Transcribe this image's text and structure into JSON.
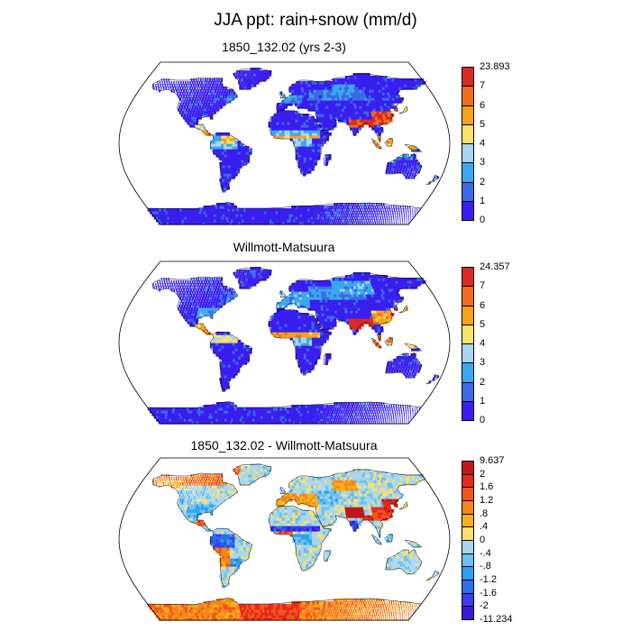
{
  "title": "JJA ppt: rain+snow (mm/d)",
  "panels": [
    {
      "id": "model",
      "title": "1850_132.02 (yrs 2-3)",
      "scale": "precip",
      "colorbar": {
        "labels": [
          "23.893",
          "7",
          "6",
          "5",
          "4",
          "3",
          "2",
          "1",
          "0"
        ],
        "colors": [
          "#d92a24",
          "#f06d1e",
          "#f7a21b",
          "#fbe369",
          "#a6d6f0",
          "#3aa8f0",
          "#3a6ae8",
          "#3a1ef0"
        ]
      }
    },
    {
      "id": "observed",
      "title": "Willmott-Matsuura",
      "scale": "precip",
      "colorbar": {
        "labels": [
          "24.357",
          "7",
          "6",
          "5",
          "4",
          "3",
          "2",
          "1",
          "0"
        ],
        "colors": [
          "#d92a24",
          "#f06d1e",
          "#f7a21b",
          "#fbe369",
          "#a6d6f0",
          "#3aa8f0",
          "#3a6ae8",
          "#3a1ef0"
        ]
      }
    },
    {
      "id": "difference",
      "title": "1850_132.02 - Willmott-Matsuura",
      "scale": "diff",
      "colorbar": {
        "labels": [
          "9.637",
          "2",
          "1.6",
          "1.2",
          ".8",
          ".4",
          "0",
          "-.4",
          "-.8",
          "-1.2",
          "-1.6",
          "-2",
          "-11.234"
        ],
        "colors": [
          "#c01818",
          "#e8281c",
          "#f2561e",
          "#f5871d",
          "#f7b01c",
          "#fbe06a",
          "#a8d6ee",
          "#6cc0f2",
          "#2aa0f0",
          "#2a70e8",
          "#3a3ef0",
          "#3a1ad8"
        ]
      }
    }
  ]
}
